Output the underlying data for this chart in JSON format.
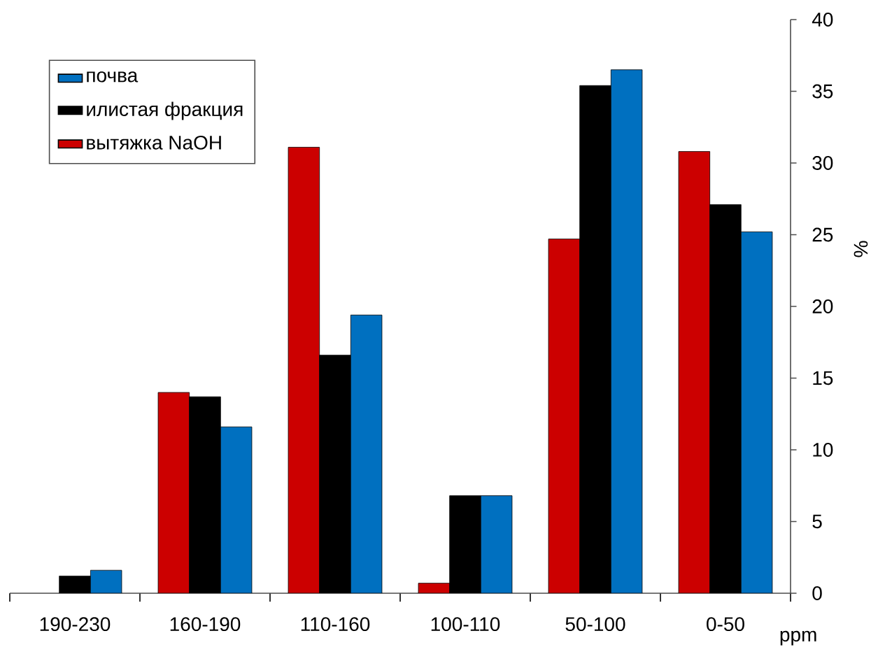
{
  "chart_data": {
    "type": "bar",
    "xlabel": "ppm",
    "ylabel": "%",
    "categories": [
      "190-230",
      "160-190",
      "110-160",
      "100-110",
      "50-100",
      "0-50"
    ],
    "series": [
      {
        "name": "вытяжка NaOH",
        "color": "#cc0000",
        "values": [
          null,
          14.0,
          31.1,
          0.7,
          24.7,
          30.8
        ]
      },
      {
        "name": "илистая фракция",
        "color": "#000000",
        "values": [
          1.2,
          13.7,
          16.6,
          6.8,
          35.4,
          27.1
        ]
      },
      {
        "name": "почва",
        "color": "#0070c0",
        "values": [
          1.6,
          11.6,
          19.4,
          6.8,
          36.5,
          25.2
        ]
      }
    ],
    "ylim": [
      0,
      40
    ],
    "yticks": [
      0,
      5,
      10,
      15,
      20,
      25,
      30,
      35,
      40
    ],
    "legend": "top left"
  }
}
